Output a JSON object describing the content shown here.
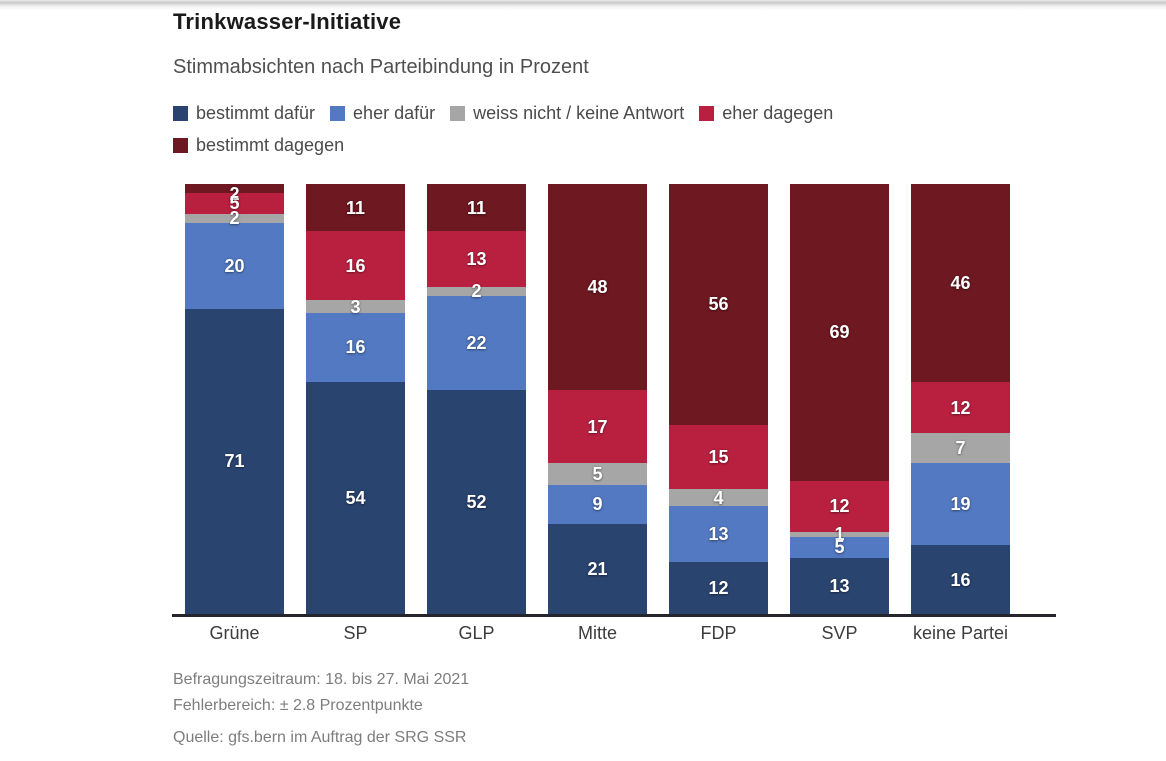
{
  "title": "Trinkwasser-Initiative",
  "subtitle": "Stimmabsichten nach Parteibindung in Prozent",
  "legend": [
    {
      "label": "bestimmt dafür",
      "color": "#2a4470"
    },
    {
      "label": "eher dafür",
      "color": "#5279c1"
    },
    {
      "label": "weiss nicht / keine Antwort",
      "color": "#a6a6a6"
    },
    {
      "label": "eher dagegen",
      "color": "#b92040"
    },
    {
      "label": "bestimmt dagegen",
      "color": "#6e1821"
    }
  ],
  "chart_data": {
    "type": "bar",
    "stacked": true,
    "orientation": "vertical",
    "title": "Trinkwasser-Initiative",
    "subtitle": "Stimmabsichten nach Parteibindung in Prozent",
    "unit": "Prozent",
    "ylim": [
      0,
      100
    ],
    "grid": false,
    "value_labels": true,
    "categories": [
      "Grüne",
      "SP",
      "GLP",
      "Mitte",
      "FDP",
      "SVP",
      "keine Partei"
    ],
    "series": [
      {
        "name": "bestimmt dafür",
        "color": "#2a4470",
        "values": [
          71,
          54,
          52,
          21,
          12,
          13,
          16
        ]
      },
      {
        "name": "eher dafür",
        "color": "#5279c1",
        "values": [
          20,
          16,
          22,
          9,
          13,
          5,
          19
        ]
      },
      {
        "name": "weiss nicht / keine Antwort",
        "color": "#a6a6a6",
        "values": [
          2,
          3,
          2,
          5,
          4,
          1,
          7
        ]
      },
      {
        "name": "eher dagegen",
        "color": "#b92040",
        "values": [
          5,
          16,
          13,
          17,
          15,
          12,
          12
        ]
      },
      {
        "name": "bestimmt dagegen",
        "color": "#6e1821",
        "values": [
          2,
          11,
          11,
          48,
          56,
          69,
          46
        ]
      }
    ]
  },
  "footer": {
    "line1": "Befragungszeitraum: 18. bis 27. Mai 2021",
    "line2": "Fehlerbereich: ± 2.8 Prozentpunkte",
    "source": "Quelle: gfs.bern im Auftrag der SRG SSR"
  }
}
